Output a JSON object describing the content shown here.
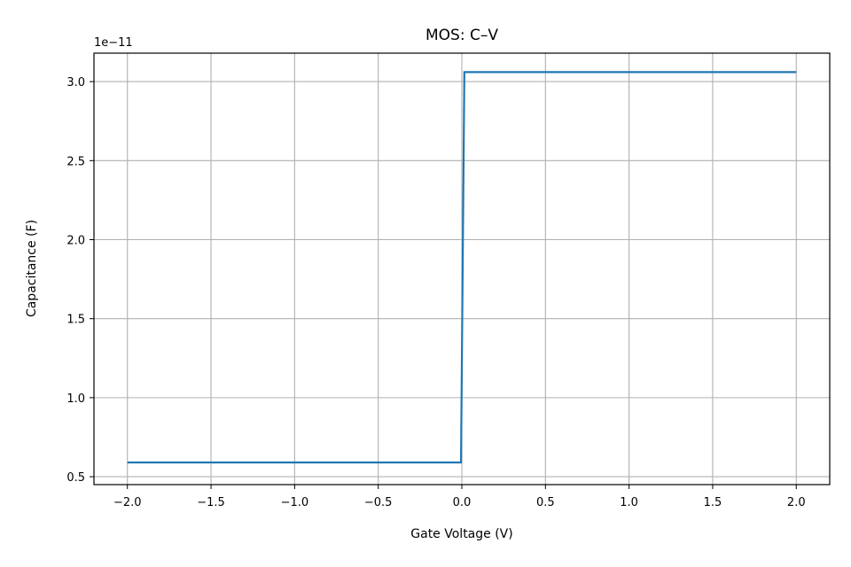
{
  "chart_data": {
    "type": "line",
    "title": "MOS: C–V",
    "xlabel": "Gate Voltage (V)",
    "ylabel": "Capacitance (F)",
    "y_offset_label": "1e−11",
    "xlim": [
      -2.2,
      2.2
    ],
    "ylim": [
      0.45,
      3.18
    ],
    "y_scale_factor": 1e-11,
    "grid": true,
    "x_ticks": [
      -2.0,
      -1.5,
      -1.0,
      -0.5,
      0.0,
      0.5,
      1.0,
      1.5,
      2.0
    ],
    "x_tick_labels": [
      "−2.0",
      "−1.5",
      "−1.0",
      "−0.5",
      "0.0",
      "0.5",
      "1.0",
      "1.5",
      "2.0"
    ],
    "y_ticks": [
      0.5,
      1.0,
      1.5,
      2.0,
      2.5,
      3.0
    ],
    "y_tick_labels": [
      "0.5",
      "1.0",
      "1.5",
      "2.0",
      "2.5",
      "3.0"
    ],
    "series": [
      {
        "color": "#1f77b4",
        "x": [
          -2.0,
          -0.005,
          0.015,
          2.0
        ],
        "y": [
          0.59,
          0.59,
          3.06,
          3.06
        ]
      }
    ]
  }
}
